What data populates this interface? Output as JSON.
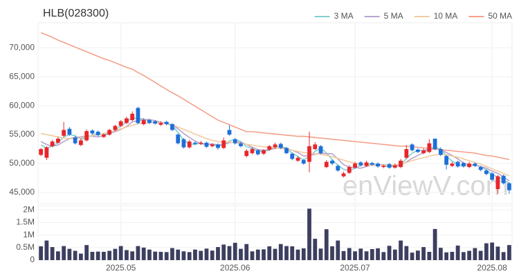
{
  "chart_data": [
    {
      "type": "candlestick",
      "title": "HLB(028300)",
      "watermark": "enViewV.com",
      "up_color": "#e8262a",
      "down_color": "#1e6fd9",
      "open": [
        51500,
        51000,
        53000,
        53600,
        54800,
        56000,
        54500,
        53200,
        54000,
        55700,
        55500,
        54600,
        55000,
        55800,
        56500,
        57000,
        57500,
        59600,
        56800,
        57500,
        57300,
        56700,
        57200,
        56800,
        55000,
        54200,
        52800,
        53600,
        53400,
        53600,
        53000,
        53300,
        52700,
        55800,
        54200,
        53500,
        51300,
        51800,
        52300,
        51700,
        52400,
        52800,
        53400,
        52700,
        51700,
        50500,
        50600,
        50300,
        52500,
        53000,
        49400,
        50500,
        49600,
        47800,
        48400,
        49300,
        50200,
        49600,
        50100,
        50000,
        49400,
        49900,
        49300,
        49400,
        51000,
        53300,
        52400,
        51800,
        52000,
        54300,
        52500,
        51300,
        49600,
        50300,
        50100,
        49400,
        50000,
        49400,
        48800,
        48300,
        45600,
        47900,
        46600
      ],
      "high": [
        52700,
        53000,
        54100,
        54600,
        57200,
        56300,
        54800,
        54300,
        55900,
        55900,
        55700,
        55200,
        56000,
        56700,
        57500,
        58100,
        59000,
        59800,
        57800,
        57700,
        57500,
        57300,
        57400,
        57000,
        55200,
        54400,
        54100,
        53800,
        53900,
        53800,
        53500,
        53500,
        54500,
        56600,
        54400,
        53700,
        52500,
        52800,
        52500,
        52500,
        53200,
        53600,
        53600,
        52900,
        51900,
        51300,
        50800,
        55500,
        53700,
        53200,
        50600,
        50700,
        49800,
        48600,
        49700,
        50300,
        50400,
        50500,
        50300,
        50200,
        49800,
        50100,
        50000,
        50800,
        53200,
        53500,
        52600,
        52600,
        54200,
        54300,
        52800,
        51500,
        50300,
        50500,
        50300,
        50300,
        50200,
        49600,
        49000,
        48500,
        48000,
        48100,
        46800
      ],
      "low": [
        51300,
        50600,
        52800,
        53400,
        54600,
        54800,
        53300,
        53000,
        53800,
        55000,
        54700,
        54400,
        54800,
        55600,
        56300,
        56800,
        57300,
        56800,
        56600,
        56800,
        56700,
        56500,
        56600,
        55600,
        53300,
        52600,
        52600,
        53200,
        53200,
        52700,
        52800,
        52400,
        52500,
        54800,
        53300,
        52800,
        51100,
        51600,
        51400,
        51500,
        52200,
        52600,
        52500,
        51600,
        50600,
        50300,
        49800,
        48500,
        52300,
        51600,
        49200,
        49700,
        48600,
        47600,
        48200,
        49100,
        49500,
        49400,
        49600,
        49300,
        49200,
        49100,
        49100,
        49200,
        50800,
        52100,
        51800,
        51600,
        51800,
        52300,
        51300,
        49000,
        49400,
        49300,
        49300,
        49200,
        49400,
        48700,
        48000,
        47000,
        44800,
        46400,
        44800
      ],
      "close": [
        52500,
        52800,
        53800,
        54300,
        55800,
        55000,
        53500,
        54000,
        55600,
        55200,
        54900,
        55000,
        55800,
        56500,
        57300,
        57800,
        58600,
        57000,
        57500,
        57000,
        56900,
        57000,
        56800,
        55800,
        53500,
        52800,
        53800,
        53400,
        53600,
        52900,
        53300,
        52700,
        54000,
        55000,
        53500,
        53000,
        52200,
        52500,
        51600,
        52300,
        53000,
        53300,
        52700,
        51800,
        50800,
        51000,
        50000,
        53000,
        53300,
        51800,
        50300,
        50000,
        48800,
        48300,
        49400,
        50000,
        49700,
        50200,
        49800,
        49500,
        49600,
        49300,
        49700,
        50500,
        52500,
        52300,
        52000,
        52300,
        53500,
        52500,
        51500,
        49800,
        50000,
        49500,
        49500,
        50000,
        49600,
        48900,
        48200,
        47200,
        47800,
        46600,
        45400
      ],
      "series": [
        {
          "name": "3 MA",
          "color": "#7fd0d0",
          "values": [
            53200,
            52700,
            53000,
            53600,
            54600,
            55000,
            54800,
            54200,
            54400,
            54900,
            55200,
            55000,
            55200,
            55800,
            56500,
            57200,
            57900,
            57800,
            57700,
            57200,
            57100,
            57000,
            56900,
            56500,
            55400,
            54000,
            53400,
            53300,
            53600,
            53300,
            53300,
            53000,
            53300,
            53900,
            54200,
            53800,
            52900,
            52600,
            52100,
            52100,
            52300,
            52900,
            53000,
            52600,
            51800,
            51200,
            50600,
            51300,
            52100,
            52700,
            51800,
            50700,
            49700,
            49000,
            48800,
            49200,
            49700,
            50000,
            49900,
            49800,
            49600,
            49500,
            49500,
            49800,
            50900,
            51800,
            52300,
            52200,
            52600,
            52800,
            52500,
            51300,
            50400,
            49800,
            49700,
            49700,
            49700,
            49500,
            48900,
            48100,
            47700,
            47200,
            46600
          ]
        },
        {
          "name": "5 MA",
          "color": "#b9a3cc",
          "values": [
            53800,
            53300,
            53000,
            53200,
            53800,
            54300,
            54500,
            54600,
            54800,
            54700,
            54600,
            54800,
            55200,
            55500,
            55900,
            56400,
            57200,
            57400,
            57600,
            57600,
            57400,
            57100,
            57000,
            56700,
            56000,
            55200,
            54500,
            53900,
            53400,
            53300,
            53400,
            53200,
            53300,
            53600,
            53700,
            53700,
            53300,
            52800,
            52400,
            52300,
            52400,
            52600,
            52700,
            52600,
            52300,
            51900,
            51300,
            51400,
            51600,
            51800,
            51700,
            51700,
            50800,
            49800,
            49400,
            49300,
            49200,
            49500,
            49800,
            49800,
            49800,
            49700,
            49600,
            49700,
            50300,
            50900,
            51400,
            51900,
            52500,
            52500,
            52400,
            51900,
            51400,
            50800,
            50100,
            49800,
            49700,
            49500,
            49200,
            48700,
            48300,
            47700,
            47000
          ]
        },
        {
          "name": "10 MA",
          "color": "#f2cb9d",
          "values": [
            55200,
            55000,
            54800,
            54600,
            54400,
            54300,
            54300,
            54400,
            54600,
            54800,
            55000,
            55200,
            55400,
            55700,
            56000,
            56300,
            56600,
            56900,
            57000,
            57100,
            57100,
            57000,
            56900,
            56700,
            56300,
            55900,
            55500,
            55100,
            54700,
            54300,
            54000,
            53800,
            53700,
            53700,
            53600,
            53500,
            53300,
            53200,
            53000,
            52900,
            52800,
            52700,
            52600,
            52500,
            52300,
            52100,
            51900,
            51800,
            51700,
            51600,
            51400,
            51200,
            50900,
            50600,
            50300,
            50100,
            49900,
            49800,
            49700,
            49700,
            49700,
            49700,
            49800,
            49900,
            50200,
            50500,
            50800,
            51000,
            51300,
            51500,
            51600,
            51500,
            51300,
            51100,
            50800,
            50500,
            50200,
            49900,
            49500,
            49100,
            48700,
            48300,
            47900
          ]
        },
        {
          "name": "50 MA",
          "color": "#f5a08b",
          "values": [
            72600,
            72200,
            71800,
            71300,
            70900,
            70500,
            70100,
            69700,
            69300,
            68900,
            68500,
            68100,
            67800,
            67400,
            67000,
            66600,
            66300,
            65700,
            65200,
            64600,
            64000,
            63400,
            62800,
            62200,
            61700,
            61100,
            60500,
            59900,
            59300,
            58700,
            58100,
            57500,
            57100,
            56700,
            56300,
            55900,
            55500,
            55500,
            55400,
            55300,
            55200,
            55100,
            55000,
            54900,
            54800,
            54700,
            54700,
            54600,
            54500,
            54400,
            54300,
            54200,
            54100,
            54000,
            53900,
            53800,
            53700,
            53600,
            53500,
            53400,
            53300,
            53200,
            53100,
            53000,
            53000,
            52900,
            52800,
            52700,
            52600,
            52500,
            52400,
            52300,
            52200,
            52100,
            52000,
            51900,
            51800,
            51600,
            51400,
            51300,
            51100,
            50900,
            50700
          ]
        }
      ],
      "legend": "top-right",
      "grid": true,
      "ylim": [
        43100,
        74300
      ],
      "yticks": [
        {
          "value": 45000,
          "label": "45,000"
        },
        {
          "value": 50000,
          "label": "50,000"
        },
        {
          "value": 55000,
          "label": "55,000"
        },
        {
          "value": 60000,
          "label": "60,000"
        },
        {
          "value": 65000,
          "label": "65,000"
        },
        {
          "value": 70000,
          "label": "70,000"
        }
      ]
    },
    {
      "type": "bar",
      "color": "#3c3f5f",
      "grid": true,
      "categories": [
        null,
        null,
        null,
        null,
        null,
        null,
        null,
        null,
        null,
        null,
        null,
        null,
        null,
        null,
        "2025.05",
        null,
        null,
        null,
        null,
        null,
        null,
        null,
        null,
        null,
        null,
        null,
        null,
        null,
        null,
        null,
        null,
        null,
        null,
        null,
        "2025.06",
        null,
        null,
        null,
        null,
        null,
        null,
        null,
        null,
        null,
        null,
        null,
        null,
        null,
        null,
        null,
        null,
        null,
        null,
        null,
        null,
        "2025.07",
        null,
        null,
        null,
        null,
        null,
        null,
        null,
        null,
        null,
        null,
        null,
        null,
        null,
        null,
        null,
        null,
        null,
        null,
        null,
        null,
        null,
        null,
        null,
        "2025.08",
        null,
        null,
        null
      ],
      "values": [
        550000,
        780000,
        520000,
        350000,
        560000,
        450000,
        370000,
        260000,
        600000,
        330000,
        340000,
        330000,
        370000,
        450000,
        560000,
        400000,
        350000,
        560000,
        500000,
        420000,
        340000,
        330000,
        320000,
        480000,
        420000,
        350000,
        320000,
        420000,
        370000,
        460000,
        380000,
        520000,
        620000,
        560000,
        690000,
        450000,
        640000,
        350000,
        420000,
        430000,
        550000,
        450000,
        640000,
        560000,
        550000,
        420000,
        470000,
        2050000,
        850000,
        460000,
        1230000,
        550000,
        780000,
        360000,
        480000,
        350000,
        460000,
        350000,
        440000,
        470000,
        320000,
        570000,
        420000,
        780000,
        560000,
        300000,
        380000,
        520000,
        330000,
        1240000,
        490000,
        310000,
        330000,
        580000,
        320000,
        370000,
        480000,
        370000,
        670000,
        700000,
        540000,
        320000,
        600000
      ],
      "ylim": [
        0,
        2170000
      ],
      "yticks": [
        0,
        {
          "value": 500000,
          "label": "0.5M"
        },
        {
          "value": 1000000,
          "label": "1M"
        },
        {
          "value": 1500000,
          "label": "1.5M"
        },
        {
          "value": 2000000,
          "label": "2M"
        }
      ]
    }
  ]
}
